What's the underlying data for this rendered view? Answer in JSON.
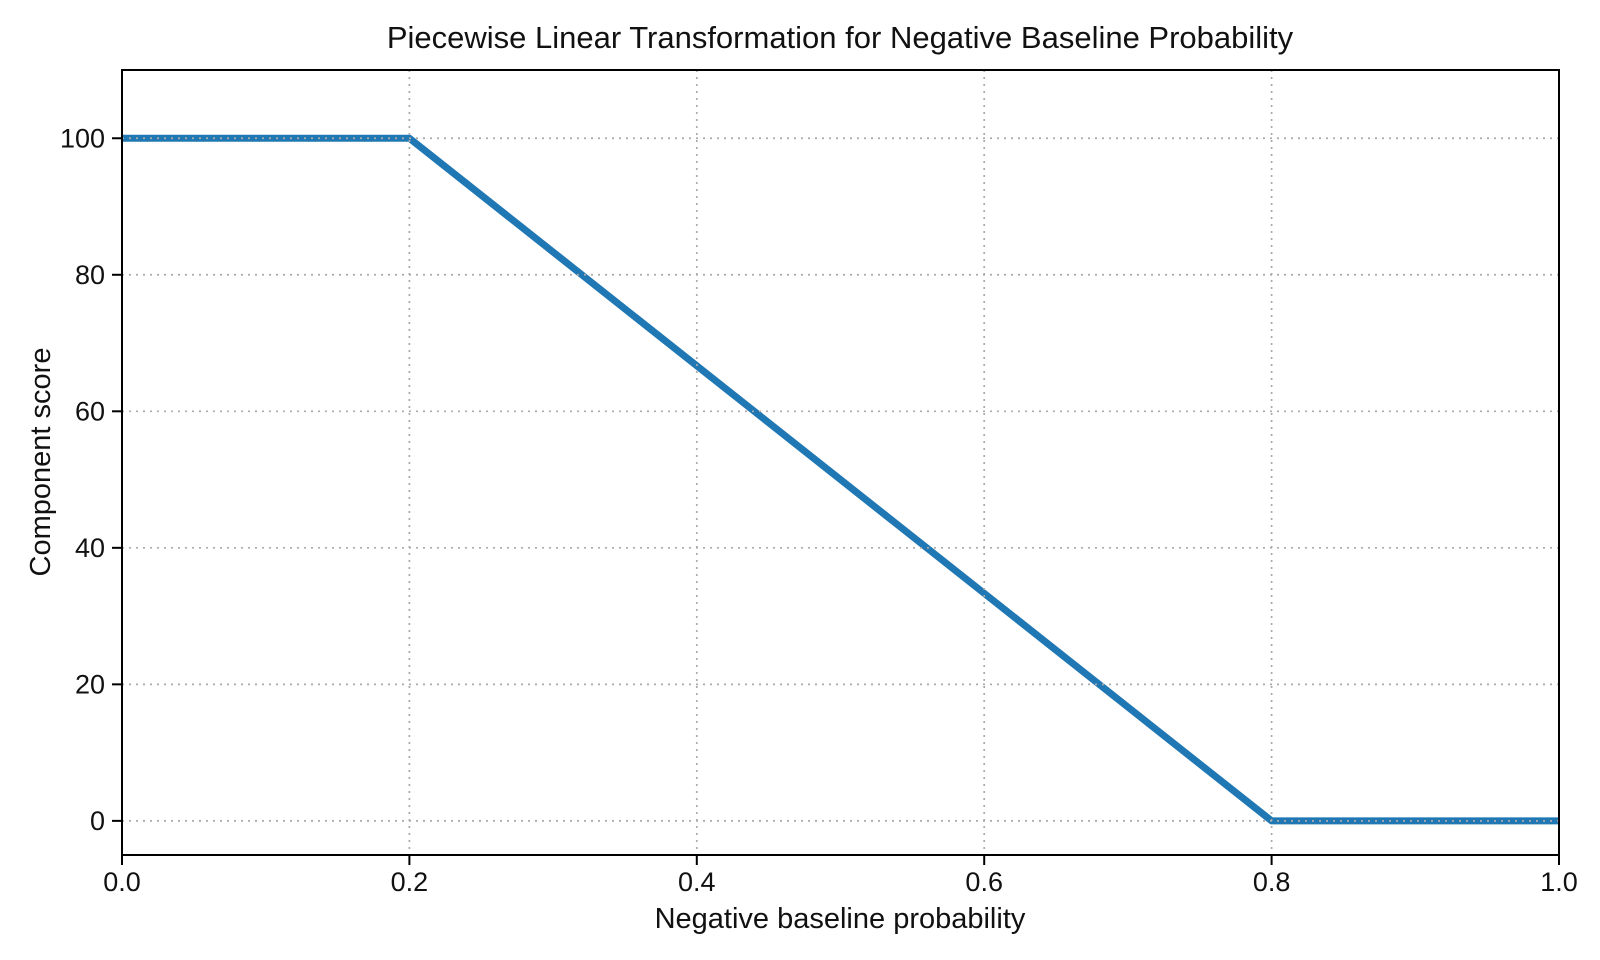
{
  "figure": {
    "background": "#ffffff"
  },
  "chart_data": {
    "type": "line",
    "title": "Piecewise Linear Transformation for Negative Baseline Probability",
    "xlabel": "Negative baseline probability",
    "ylabel": "Component score",
    "xlim": [
      0.0,
      1.0
    ],
    "ylim": [
      -5,
      110
    ],
    "x_ticks": [
      {
        "value": 0.0,
        "label": "0.0"
      },
      {
        "value": 0.2,
        "label": "0.2"
      },
      {
        "value": 0.4,
        "label": "0.4"
      },
      {
        "value": 0.6,
        "label": "0.6"
      },
      {
        "value": 0.8,
        "label": "0.8"
      },
      {
        "value": 1.0,
        "label": "1.0"
      }
    ],
    "y_ticks": [
      {
        "value": 0,
        "label": "0"
      },
      {
        "value": 20,
        "label": "20"
      },
      {
        "value": 40,
        "label": "40"
      },
      {
        "value": 60,
        "label": "60"
      },
      {
        "value": 80,
        "label": "80"
      },
      {
        "value": 100,
        "label": "100"
      }
    ],
    "series": [
      {
        "name": "piecewise-linear-transform",
        "color": "#1f77b4",
        "line_width": 7,
        "points": [
          {
            "x": 0.0,
            "y": 100
          },
          {
            "x": 0.2,
            "y": 100
          },
          {
            "x": 0.8,
            "y": 0
          },
          {
            "x": 1.0,
            "y": 0
          }
        ]
      }
    ],
    "grid": {
      "visible": true,
      "linestyle": "dotted",
      "color": "#aaaaaa",
      "drawn_above_data": true
    },
    "axes_style": {
      "spine_color": "#000000",
      "tick_color": "#000000",
      "text_color": "#111111"
    },
    "legend": null
  }
}
